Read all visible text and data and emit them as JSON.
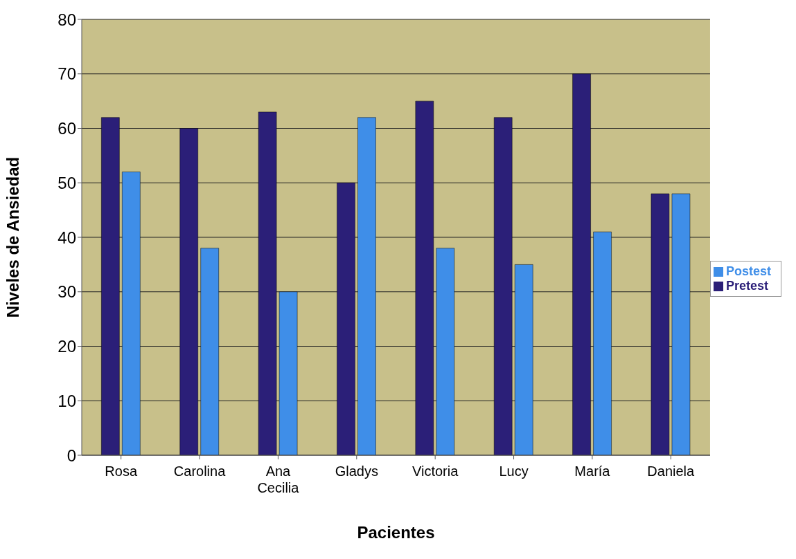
{
  "chart_data": {
    "type": "bar",
    "xlabel": "Pacientes",
    "ylabel": "Niveles de Ansiedad",
    "categories": [
      "Rosa",
      "Carolina",
      "Ana Cecilia",
      "Gladys",
      "Victoria",
      "Lucy",
      "María",
      "Daniela"
    ],
    "series": [
      {
        "name": "Pretest",
        "color": "#2b1f78",
        "values": [
          62,
          60,
          63,
          50,
          65,
          62,
          70,
          48
        ]
      },
      {
        "name": "Postest",
        "color": "#3f8ee8",
        "values": [
          52,
          38,
          30,
          62,
          38,
          35,
          41,
          48
        ]
      }
    ],
    "ylim": [
      0,
      80
    ],
    "yticks": [
      0,
      10,
      20,
      30,
      40,
      50,
      60,
      70,
      80
    ],
    "grid": "y",
    "legend": "right"
  }
}
